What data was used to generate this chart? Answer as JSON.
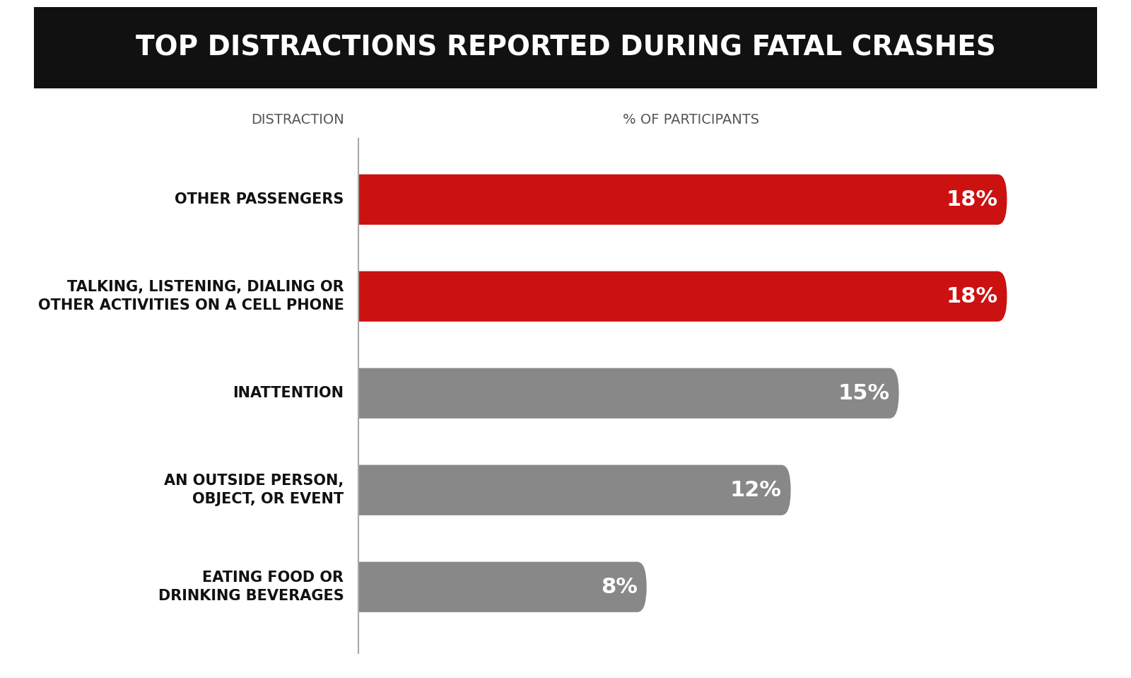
{
  "title": "TOP DISTRACTIONS REPORTED DURING FATAL CRASHES",
  "col_header_left": "DISTRACTION",
  "col_header_right": "% OF PARTICIPANTS",
  "categories": [
    "OTHER PASSENGERS",
    "TALKING, LISTENING, DIALING OR\nOTHER ACTIVITIES ON A CELL PHONE",
    "INATTENTION",
    "AN OUTSIDE PERSON,\nOBJECT, OR EVENT",
    "EATING FOOD OR\nDRINKING BEVERAGES"
  ],
  "values": [
    18,
    18,
    15,
    12,
    8
  ],
  "bar_colors": [
    "#cc1111",
    "#cc1111",
    "#888888",
    "#888888",
    "#888888"
  ],
  "label_texts": [
    "18%",
    "18%",
    "15%",
    "12%",
    "8%"
  ],
  "background_color": "#ffffff",
  "title_bg_color": "#111111",
  "title_text_color": "#ffffff",
  "bar_label_color": "#ffffff",
  "category_text_color": "#111111",
  "divider_color": "#aaaaaa",
  "max_value": 20,
  "figsize": [
    16.0,
    9.59
  ],
  "dpi": 100
}
